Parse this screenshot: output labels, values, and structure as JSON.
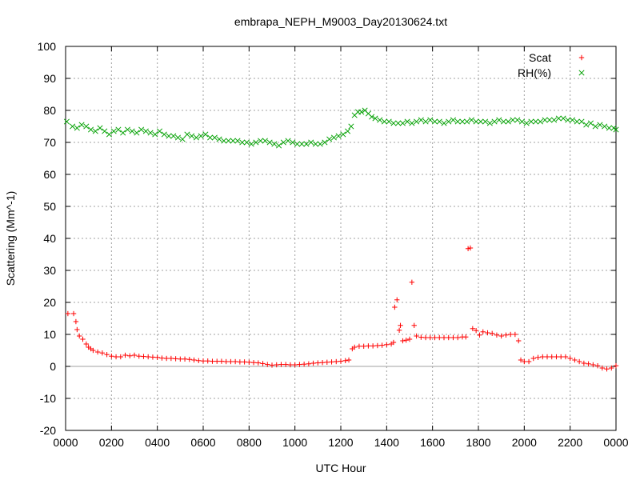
{
  "chart_data": {
    "type": "scatter",
    "title": "embrapa_NEPH_M9003_Day20130624.txt",
    "xlabel": "UTC Hour",
    "ylabel": "Scattering (Mm^-1)",
    "xlim": [
      0,
      24
    ],
    "ylim": [
      -20,
      100
    ],
    "grid": true,
    "legend_position": "top-right",
    "x_ticks": [
      {
        "value": 0,
        "label": "0000"
      },
      {
        "value": 2,
        "label": "0200"
      },
      {
        "value": 4,
        "label": "0400"
      },
      {
        "value": 6,
        "label": "0600"
      },
      {
        "value": 8,
        "label": "0800"
      },
      {
        "value": 10,
        "label": "1000"
      },
      {
        "value": 12,
        "label": "1200"
      },
      {
        "value": 14,
        "label": "1400"
      },
      {
        "value": 16,
        "label": "1600"
      },
      {
        "value": 18,
        "label": "1800"
      },
      {
        "value": 20,
        "label": "2000"
      },
      {
        "value": 22,
        "label": "2200"
      },
      {
        "value": 24,
        "label": "0000"
      }
    ],
    "y_ticks": [
      -20,
      -10,
      0,
      10,
      20,
      30,
      40,
      50,
      60,
      70,
      80,
      90,
      100
    ],
    "zero_line": true,
    "series": [
      {
        "name": "Scat",
        "marker": "plus",
        "color": "#ff0000",
        "points": [
          [
            0.1,
            16.5
          ],
          [
            0.35,
            16.5
          ],
          [
            0.45,
            14
          ],
          [
            0.5,
            11.5
          ],
          [
            0.6,
            9.5
          ],
          [
            0.75,
            8.5
          ],
          [
            0.9,
            7
          ],
          [
            1.0,
            6
          ],
          [
            1.1,
            5.5
          ],
          [
            1.2,
            5
          ],
          [
            1.4,
            4.5
          ],
          [
            1.6,
            4.2
          ],
          [
            1.8,
            3.7
          ],
          [
            2.0,
            3.2
          ],
          [
            2.2,
            3
          ],
          [
            2.4,
            3
          ],
          [
            2.6,
            3.5
          ],
          [
            2.8,
            3.3
          ],
          [
            3.0,
            3.5
          ],
          [
            3.2,
            3.2
          ],
          [
            3.4,
            3.1
          ],
          [
            3.6,
            3
          ],
          [
            3.8,
            2.9
          ],
          [
            4.0,
            2.8
          ],
          [
            4.2,
            2.6
          ],
          [
            4.4,
            2.5
          ],
          [
            4.6,
            2.5
          ],
          [
            4.8,
            2.4
          ],
          [
            5.0,
            2.3
          ],
          [
            5.2,
            2.3
          ],
          [
            5.4,
            2.2
          ],
          [
            5.6,
            2
          ],
          [
            5.8,
            1.8
          ],
          [
            6.0,
            1.7
          ],
          [
            6.2,
            1.7
          ],
          [
            6.4,
            1.6
          ],
          [
            6.6,
            1.6
          ],
          [
            6.8,
            1.6
          ],
          [
            7.0,
            1.5
          ],
          [
            7.2,
            1.5
          ],
          [
            7.4,
            1.5
          ],
          [
            7.6,
            1.4
          ],
          [
            7.8,
            1.4
          ],
          [
            8.0,
            1.3
          ],
          [
            8.2,
            1.2
          ],
          [
            8.4,
            1.1
          ],
          [
            8.6,
            0.9
          ],
          [
            8.8,
            0.6
          ],
          [
            9.0,
            0.4
          ],
          [
            9.2,
            0.5
          ],
          [
            9.4,
            0.6
          ],
          [
            9.6,
            0.6
          ],
          [
            9.8,
            0.5
          ],
          [
            10.0,
            0.5
          ],
          [
            10.2,
            0.6
          ],
          [
            10.4,
            0.7
          ],
          [
            10.6,
            0.8
          ],
          [
            10.8,
            1.0
          ],
          [
            11.0,
            1.1
          ],
          [
            11.2,
            1.2
          ],
          [
            11.4,
            1.3
          ],
          [
            11.6,
            1.4
          ],
          [
            11.8,
            1.5
          ],
          [
            12.0,
            1.6
          ],
          [
            12.2,
            1.8
          ],
          [
            12.35,
            2.0
          ],
          [
            12.5,
            5.5
          ],
          [
            12.6,
            6
          ],
          [
            12.8,
            6.3
          ],
          [
            13.0,
            6.3
          ],
          [
            13.2,
            6.4
          ],
          [
            13.4,
            6.4
          ],
          [
            13.6,
            6.5
          ],
          [
            13.8,
            6.6
          ],
          [
            14.0,
            6.8
          ],
          [
            14.2,
            7.0
          ],
          [
            14.3,
            7.5
          ],
          [
            14.35,
            18.5
          ],
          [
            14.45,
            20.8
          ],
          [
            14.55,
            11.3
          ],
          [
            14.6,
            12.8
          ],
          [
            14.7,
            8.0
          ],
          [
            14.85,
            8.2
          ],
          [
            15.0,
            8.5
          ],
          [
            15.1,
            26.3
          ],
          [
            15.2,
            12.8
          ],
          [
            15.3,
            9.5
          ],
          [
            15.5,
            9.1
          ],
          [
            15.7,
            9.0
          ],
          [
            15.9,
            9.0
          ],
          [
            16.1,
            9.0
          ],
          [
            16.3,
            9.0
          ],
          [
            16.5,
            9.0
          ],
          [
            16.7,
            9.0
          ],
          [
            16.9,
            9.0
          ],
          [
            17.1,
            9.0
          ],
          [
            17.3,
            9.2
          ],
          [
            17.45,
            9.2
          ],
          [
            17.55,
            36.8
          ],
          [
            17.65,
            37.0
          ],
          [
            17.75,
            11.8
          ],
          [
            17.9,
            11.2
          ],
          [
            18.05,
            9.8
          ],
          [
            18.2,
            10.8
          ],
          [
            18.4,
            10.5
          ],
          [
            18.6,
            10.3
          ],
          [
            18.8,
            9.8
          ],
          [
            19.0,
            9.5
          ],
          [
            19.2,
            9.8
          ],
          [
            19.4,
            10.0
          ],
          [
            19.6,
            10.0
          ],
          [
            19.75,
            8.0
          ],
          [
            19.85,
            2.0
          ],
          [
            20.0,
            1.5
          ],
          [
            20.2,
            1.5
          ],
          [
            20.4,
            2.5
          ],
          [
            20.6,
            2.8
          ],
          [
            20.8,
            3.0
          ],
          [
            21.0,
            3.0
          ],
          [
            21.2,
            3.0
          ],
          [
            21.4,
            3.0
          ],
          [
            21.6,
            3.0
          ],
          [
            21.8,
            3.0
          ],
          [
            22.0,
            2.5
          ],
          [
            22.2,
            2.0
          ],
          [
            22.4,
            1.5
          ],
          [
            22.6,
            1.0
          ],
          [
            22.8,
            0.8
          ],
          [
            23.0,
            0.5
          ],
          [
            23.2,
            0.2
          ],
          [
            23.4,
            -0.5
          ],
          [
            23.6,
            -0.8
          ],
          [
            23.8,
            -0.5
          ],
          [
            24.0,
            0.2
          ]
        ]
      },
      {
        "name": "RH(%)",
        "marker": "cross",
        "color": "#00a000",
        "points": [
          [
            0.05,
            76.5
          ],
          [
            0.3,
            75
          ],
          [
            0.5,
            74.5
          ],
          [
            0.7,
            75.5
          ],
          [
            0.9,
            75
          ],
          [
            1.1,
            74
          ],
          [
            1.3,
            73.5
          ],
          [
            1.5,
            74.5
          ],
          [
            1.7,
            73.5
          ],
          [
            1.9,
            72.5
          ],
          [
            2.1,
            73.5
          ],
          [
            2.3,
            74
          ],
          [
            2.5,
            73
          ],
          [
            2.7,
            74
          ],
          [
            2.9,
            73.5
          ],
          [
            3.1,
            73
          ],
          [
            3.3,
            74
          ],
          [
            3.5,
            73.5
          ],
          [
            3.7,
            73
          ],
          [
            3.9,
            72.5
          ],
          [
            4.1,
            73.5
          ],
          [
            4.3,
            72.5
          ],
          [
            4.5,
            72
          ],
          [
            4.7,
            72
          ],
          [
            4.9,
            71.5
          ],
          [
            5.1,
            71
          ],
          [
            5.3,
            72.5
          ],
          [
            5.5,
            72
          ],
          [
            5.7,
            71.5
          ],
          [
            5.9,
            72
          ],
          [
            6.1,
            72.5
          ],
          [
            6.3,
            71.5
          ],
          [
            6.5,
            71.5
          ],
          [
            6.7,
            71
          ],
          [
            6.9,
            70.5
          ],
          [
            7.1,
            70.5
          ],
          [
            7.3,
            70.5
          ],
          [
            7.5,
            70.5
          ],
          [
            7.7,
            70
          ],
          [
            7.9,
            70
          ],
          [
            8.1,
            69.5
          ],
          [
            8.3,
            70
          ],
          [
            8.5,
            70.5
          ],
          [
            8.7,
            70.5
          ],
          [
            8.9,
            70
          ],
          [
            9.1,
            69.5
          ],
          [
            9.3,
            69
          ],
          [
            9.5,
            70
          ],
          [
            9.7,
            70.5
          ],
          [
            9.9,
            70
          ],
          [
            10.1,
            69.5
          ],
          [
            10.3,
            69.5
          ],
          [
            10.5,
            69.5
          ],
          [
            10.7,
            70
          ],
          [
            10.9,
            69.5
          ],
          [
            11.1,
            69.5
          ],
          [
            11.3,
            70
          ],
          [
            11.5,
            71
          ],
          [
            11.7,
            71.5
          ],
          [
            11.9,
            72
          ],
          [
            12.1,
            72.5
          ],
          [
            12.3,
            73.5
          ],
          [
            12.45,
            75
          ],
          [
            12.6,
            78.5
          ],
          [
            12.75,
            79.5
          ],
          [
            12.9,
            79.5
          ],
          [
            13.05,
            80
          ],
          [
            13.2,
            79
          ],
          [
            13.35,
            78
          ],
          [
            13.5,
            77.5
          ],
          [
            13.7,
            77
          ],
          [
            13.9,
            76.5
          ],
          [
            14.1,
            76.5
          ],
          [
            14.3,
            76
          ],
          [
            14.5,
            76
          ],
          [
            14.7,
            76
          ],
          [
            14.9,
            76.5
          ],
          [
            15.1,
            76
          ],
          [
            15.3,
            76.5
          ],
          [
            15.5,
            77
          ],
          [
            15.7,
            76.5
          ],
          [
            15.9,
            77
          ],
          [
            16.1,
            76.5
          ],
          [
            16.3,
            76.5
          ],
          [
            16.5,
            76
          ],
          [
            16.7,
            76.5
          ],
          [
            16.9,
            77
          ],
          [
            17.1,
            76.5
          ],
          [
            17.3,
            76.5
          ],
          [
            17.5,
            76.5
          ],
          [
            17.7,
            77
          ],
          [
            17.9,
            76.5
          ],
          [
            18.1,
            76.5
          ],
          [
            18.3,
            76.5
          ],
          [
            18.5,
            76
          ],
          [
            18.7,
            76.5
          ],
          [
            18.9,
            77
          ],
          [
            19.1,
            76.5
          ],
          [
            19.3,
            76.5
          ],
          [
            19.5,
            77
          ],
          [
            19.7,
            77
          ],
          [
            19.9,
            76.5
          ],
          [
            20.1,
            76
          ],
          [
            20.3,
            76.5
          ],
          [
            20.5,
            76.5
          ],
          [
            20.7,
            76.5
          ],
          [
            20.9,
            77
          ],
          [
            21.1,
            77
          ],
          [
            21.3,
            77
          ],
          [
            21.5,
            77.5
          ],
          [
            21.7,
            77.5
          ],
          [
            21.9,
            77
          ],
          [
            22.1,
            77
          ],
          [
            22.3,
            76.5
          ],
          [
            22.5,
            76.5
          ],
          [
            22.7,
            75.5
          ],
          [
            22.9,
            76
          ],
          [
            23.1,
            75
          ],
          [
            23.3,
            75.5
          ],
          [
            23.5,
            75
          ],
          [
            23.7,
            74.5
          ],
          [
            23.9,
            74.5
          ],
          [
            24.0,
            74
          ]
        ]
      }
    ]
  }
}
